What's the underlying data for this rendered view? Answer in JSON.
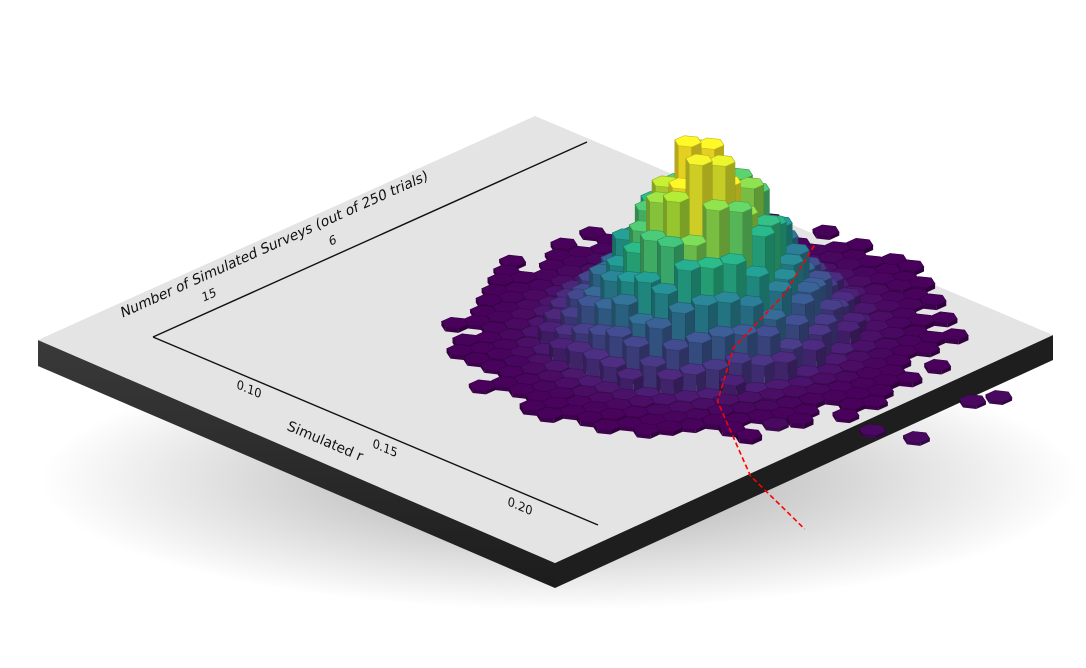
{
  "chart_data": {
    "type": "heatmap",
    "subtype": "3d-hexbin",
    "title": "",
    "xlabel": "Simulated r",
    "ylabel": "Number of Simulated Surveys (out of 250 trials)",
    "x_ticks": [
      "0.10",
      "0.15",
      "0.20"
    ],
    "y_ticks": [
      "15",
      "6"
    ],
    "reference_line": {
      "color": "#ff0000",
      "style": "dashed"
    },
    "colormap": "viridis",
    "bins": [
      {
        "x": 0.1,
        "y": 5.0,
        "count": 6
      },
      {
        "x": 0.11,
        "y": 5.5,
        "count": 12
      },
      {
        "x": 0.12,
        "y": 6.0,
        "count": 24
      },
      {
        "x": 0.13,
        "y": 6.5,
        "count": 40
      },
      {
        "x": 0.14,
        "y": 7.0,
        "count": 60
      },
      {
        "x": 0.15,
        "y": 7.5,
        "count": 90
      },
      {
        "x": 0.155,
        "y": 8.0,
        "count": 120
      },
      {
        "x": 0.16,
        "y": 8.5,
        "count": 150
      },
      {
        "x": 0.165,
        "y": 9.0,
        "count": 130
      },
      {
        "x": 0.17,
        "y": 9.5,
        "count": 95
      },
      {
        "x": 0.18,
        "y": 10.0,
        "count": 55
      },
      {
        "x": 0.19,
        "y": 11.0,
        "count": 25
      },
      {
        "x": 0.2,
        "y": 12.0,
        "count": 10
      },
      {
        "x": 0.21,
        "y": 13.0,
        "count": 4
      }
    ]
  },
  "colors": {
    "base_top": "#e4e4e4",
    "base_side": "#2e2e2e",
    "reference_line": "#ff0000",
    "text": "#111111"
  }
}
